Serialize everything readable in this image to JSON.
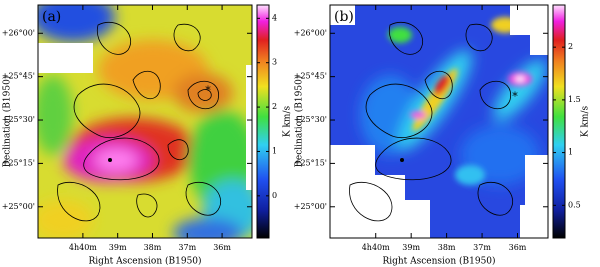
{
  "chart_data": [
    {
      "type": "heatmap",
      "panel_label": "(a)",
      "x_label": "Right Ascension (B1950)",
      "y_label": "Declination (B1950)",
      "colorbar_label": "K km/s",
      "xlim": [
        281.29,
        275.14
      ],
      "xticks": [
        {
          "value": 280,
          "label": "4h40m"
        },
        {
          "value": 279,
          "label": "39m"
        },
        {
          "value": 278,
          "label": "38m"
        },
        {
          "value": 277,
          "label": "37m"
        },
        {
          "value": 276,
          "label": "36m"
        }
      ],
      "ylim": [
        24.82,
        26.163
      ],
      "yticks": [
        {
          "value": 26.0,
          "label": "+26°00'"
        },
        {
          "value": 25.75,
          "label": "+25°45'"
        },
        {
          "value": 25.5,
          "label": "+25°30'"
        },
        {
          "value": 25.25,
          "label": "+25°15'"
        },
        {
          "value": 25.0,
          "label": "+25°00'"
        }
      ],
      "clim": [
        -0.95,
        4.3
      ],
      "cticks": [
        0,
        1,
        2,
        3,
        4
      ]
    },
    {
      "type": "heatmap",
      "panel_label": "(b)",
      "x_label": "Right Ascension (B1950)",
      "y_label": "Declination (B1950)",
      "colorbar_label": "K km/s",
      "xlim": [
        281.29,
        275.14
      ],
      "xticks": [
        {
          "value": 280,
          "label": "4h40m"
        },
        {
          "value": 279,
          "label": "39m"
        },
        {
          "value": 278,
          "label": "38m"
        },
        {
          "value": 277,
          "label": "37m"
        },
        {
          "value": 276,
          "label": "36m"
        }
      ],
      "ylim": [
        24.82,
        26.163
      ],
      "yticks": [
        {
          "value": 26.0,
          "label": "+26°00'"
        },
        {
          "value": 25.75,
          "label": "+25°45'"
        },
        {
          "value": 25.5,
          "label": "+25°30'"
        },
        {
          "value": 25.25,
          "label": "+25°15'"
        },
        {
          "value": 25.0,
          "label": "+25°00'"
        }
      ],
      "clim": [
        0.19,
        2.4
      ],
      "cticks": [
        0.5,
        1,
        1.5,
        2
      ]
    }
  ]
}
